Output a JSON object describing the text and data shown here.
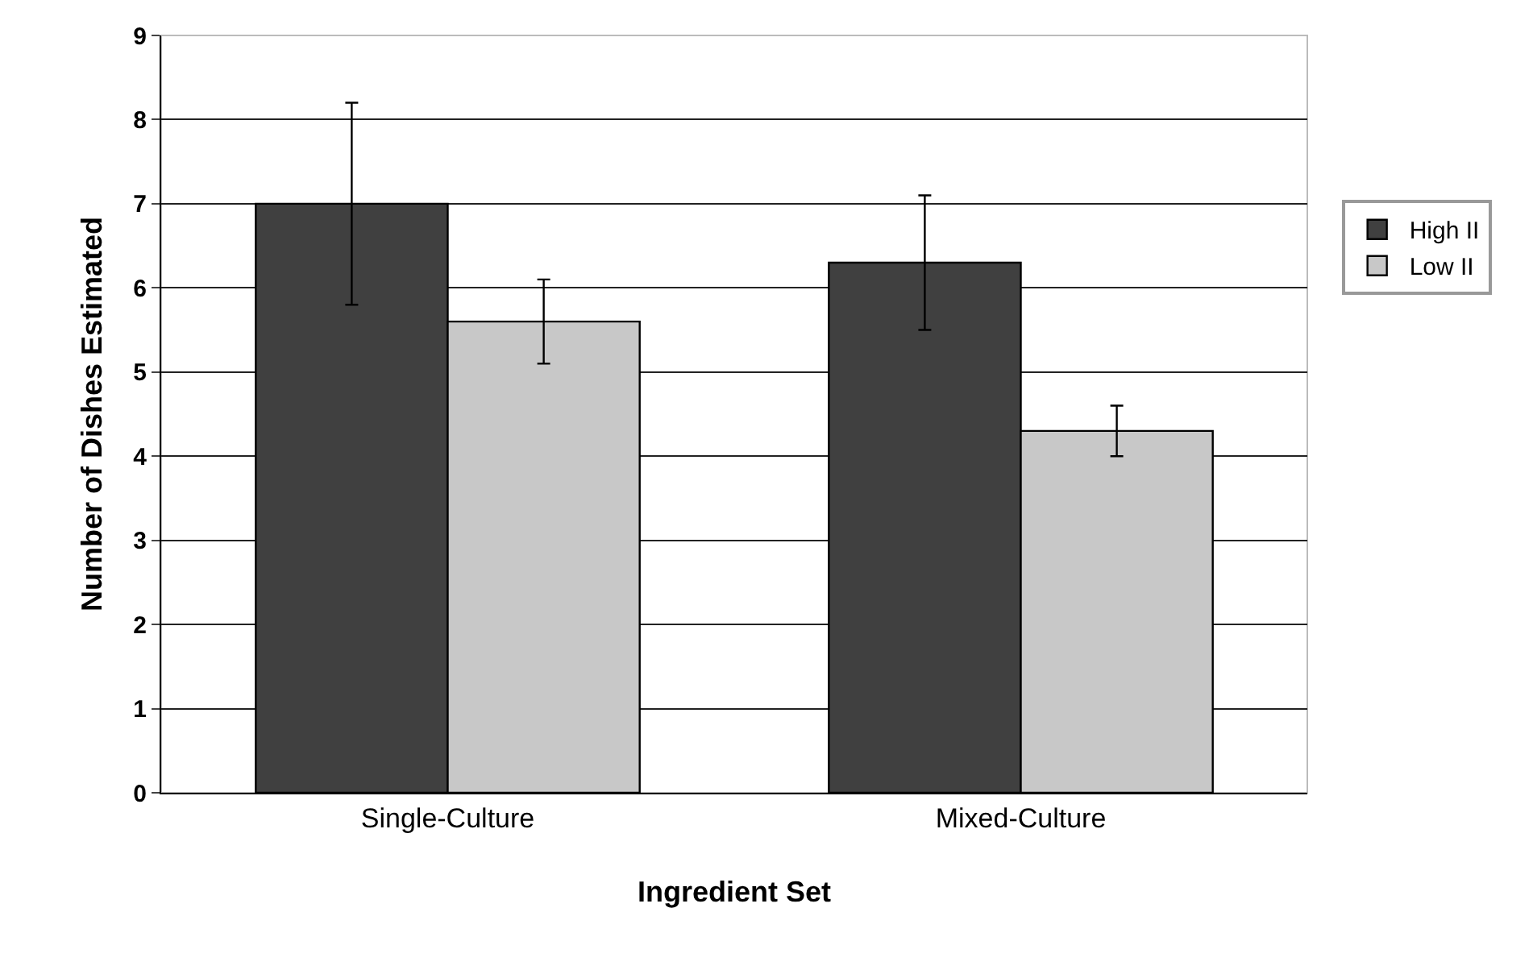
{
  "chart_data": {
    "type": "bar",
    "xlabel": "Ingredient Set",
    "ylabel": "Number of Dishes Estimated",
    "categories": [
      "Single-Culture",
      "Mixed-Culture"
    ],
    "series": [
      {
        "name": "High II",
        "color": "#404040",
        "values": [
          7.0,
          6.3
        ],
        "errors": [
          1.2,
          0.8
        ]
      },
      {
        "name": "Low II",
        "color": "#c8c8c8",
        "values": [
          5.6,
          4.3
        ],
        "errors": [
          0.5,
          0.3
        ]
      }
    ],
    "ylim": [
      0,
      9
    ],
    "yticks": [
      0,
      1,
      2,
      3,
      4,
      5,
      6,
      7,
      8,
      9
    ],
    "grid": "y",
    "legend": "right"
  }
}
